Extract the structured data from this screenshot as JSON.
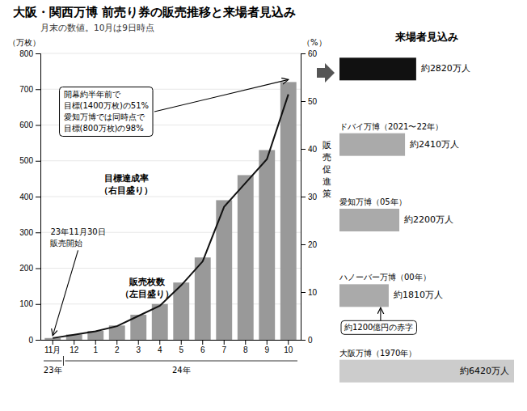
{
  "chart_data": [
    {
      "type": "bar",
      "title": "大阪・関西万博 前売り券の販売推移と来場者見込み",
      "subtitle": "月末の数値。10月は9日時点",
      "categories": [
        "11月",
        "12",
        "1",
        "2",
        "3",
        "4",
        "5",
        "6",
        "7",
        "8",
        "9",
        "10"
      ],
      "series": [
        {
          "name": "販売枚数\n（左目盛り）",
          "type": "bar",
          "color": "#999999",
          "values": [
            5,
            15,
            25,
            40,
            70,
            100,
            160,
            230,
            390,
            460,
            530,
            720
          ]
        },
        {
          "name": "目標達成率\n（右目盛り）",
          "type": "line",
          "color": "#111111",
          "axis": "y2",
          "values": [
            0.36,
            1.07,
            1.79,
            2.86,
            5.0,
            7.14,
            11.43,
            16.43,
            27.86,
            32.86,
            37.86,
            51.43
          ]
        }
      ],
      "ylim": [
        0,
        800
      ],
      "yticks": [
        0,
        100,
        200,
        300,
        400,
        500,
        600,
        700,
        800
      ],
      "y2lim": [
        0,
        60
      ],
      "y2ticks": [
        0,
        10,
        20,
        30,
        40,
        50,
        60
      ],
      "ylabel": "（万枚）",
      "y2label": "（%）",
      "grid": true,
      "annotations": [
        {
          "text": "開幕約半年前で\n目標(1400万枚)の51%\n愛知万博では同時点で\n目標(800万枚)の98%",
          "category": "10"
        },
        {
          "text": "23年11月30日\n販売開始",
          "category": "11月"
        }
      ],
      "category_groups": [
        {
          "label": "23年",
          "from": "11月",
          "to": "11月"
        },
        {
          "label": "24年",
          "from": "12",
          "to": "10"
        }
      ]
    },
    {
      "type": "bar",
      "orientation": "horizontal",
      "title": "来場者見込み",
      "categories": [
        null,
        "ドバイ万博（2021〜22年）",
        "愛知万博（05年）",
        "ハノーバー万博（00年）",
        "大阪万博（1970年）"
      ],
      "values": [
        2820,
        2410,
        2200,
        1810,
        6420
      ],
      "value_labels": [
        "約2820万人",
        "約2410万人",
        "約2200万人",
        "約1810万人",
        "約6420万人"
      ],
      "colors": [
        "#111111",
        "#aaaaaa",
        "#aaaaaa",
        "#aaaaaa",
        "#cccccc"
      ],
      "data_labels": true,
      "xlim": [
        0,
        6420
      ],
      "tick_labels": "y",
      "annotations": [
        {
          "text": "約1200億円の赤字",
          "category": "ハノーバー万博（00年）"
        },
        {
          "text": "販\n売\n促\n進\n策"
        }
      ]
    }
  ]
}
